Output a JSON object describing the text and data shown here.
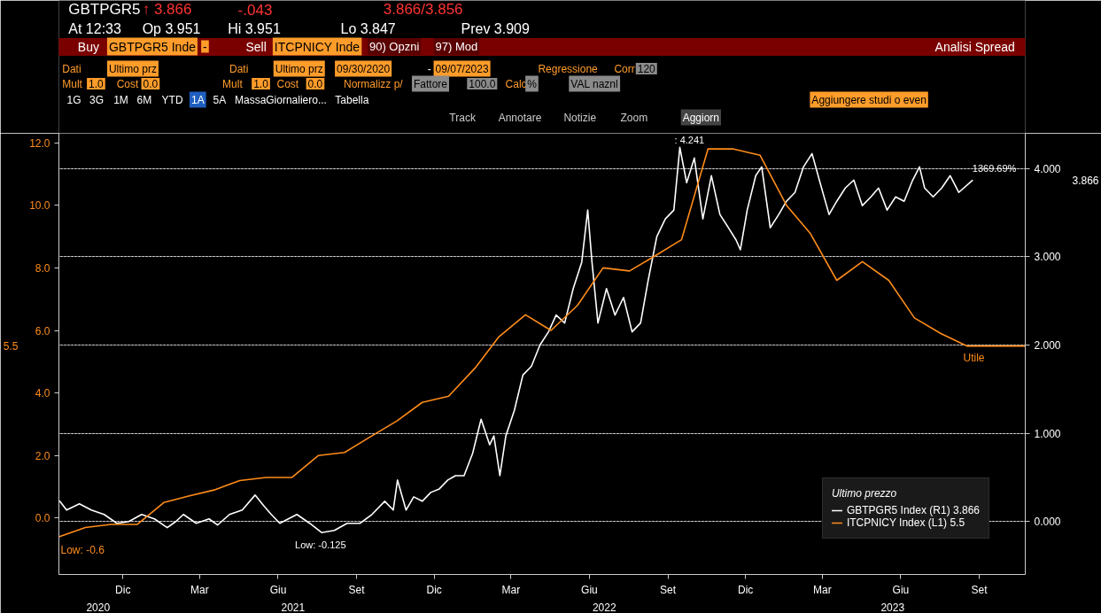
{
  "chart_data": {
    "type": "line",
    "legend_title": "Ultimo prezzo",
    "legend": "bottom right",
    "grid": "y",
    "xlim": [
      "2020-10-01",
      "2023-11-08"
    ],
    "xticks": [
      {
        "value": "2020-12-15",
        "label": "Dic"
      },
      {
        "value": "2021-03-15",
        "label": "Mar"
      },
      {
        "value": "2021-06-15",
        "label": "Giu"
      },
      {
        "value": "2021-09-15",
        "label": "Set"
      },
      {
        "value": "2021-12-15",
        "label": "Dic"
      },
      {
        "value": "2022-03-15",
        "label": "Mar"
      },
      {
        "value": "2022-06-15",
        "label": "Giu"
      },
      {
        "value": "2022-09-15",
        "label": "Set"
      },
      {
        "value": "2022-12-15",
        "label": "Dic"
      },
      {
        "value": "2023-03-15",
        "label": "Mar"
      },
      {
        "value": "2023-06-15",
        "label": "Giu"
      },
      {
        "value": "2023-09-15",
        "label": "Set"
      }
    ],
    "ylim": [
      -0.6,
      4.4
    ],
    "yticks": [
      {
        "value": 0,
        "label": "0.000"
      },
      {
        "value": 1,
        "label": "1.000"
      },
      {
        "value": 2,
        "label": "2.000"
      },
      {
        "value": 3,
        "label": "3.000"
      },
      {
        "value": 4,
        "label": "4.000"
      }
    ],
    "y2lim": [
      -1.8,
      12.3
    ],
    "y2ticks": [
      {
        "value": 0,
        "label": "0.0"
      },
      {
        "value": 2,
        "label": "2.0"
      },
      {
        "value": 4,
        "label": "4.0"
      },
      {
        "value": 6,
        "label": "6.0"
      },
      {
        "value": 8,
        "label": "8.0"
      },
      {
        "value": 10,
        "label": "10.0"
      },
      {
        "value": 12,
        "label": "12.0"
      }
    ],
    "series": [
      {
        "name": "GBTPGR5 Index (R1) 3.866",
        "color": "#ffffff",
        "x": [
          "2020-10-02",
          "2020-10-10",
          "2020-10-25",
          "2020-11-08",
          "2020-11-23",
          "2020-12-08",
          "2020-12-22",
          "2021-01-06",
          "2021-01-21",
          "2021-02-05",
          "2021-02-15",
          "2021-02-24",
          "2021-03-11",
          "2021-03-26",
          "2021-04-05",
          "2021-04-19",
          "2021-05-04",
          "2021-05-19",
          "2021-05-29",
          "2021-06-07",
          "2021-06-17",
          "2021-06-27",
          "2021-07-07",
          "2021-07-22",
          "2021-08-05",
          "2021-08-20",
          "2021-09-04",
          "2021-09-19",
          "2021-10-03",
          "2021-10-18",
          "2021-10-28",
          "2021-11-02",
          "2021-11-12",
          "2021-11-21",
          "2021-12-01",
          "2021-12-11",
          "2021-12-21",
          "2021-12-31",
          "2022-01-09",
          "2022-01-19",
          "2022-01-29",
          "2022-02-08",
          "2022-02-18",
          "2022-02-23",
          "2022-03-02",
          "2022-03-09",
          "2022-03-19",
          "2022-03-29",
          "2022-04-08",
          "2022-04-18",
          "2022-04-28",
          "2022-05-07",
          "2022-05-17",
          "2022-05-27",
          "2022-06-06",
          "2022-06-13",
          "2022-06-18",
          "2022-06-25",
          "2022-07-05",
          "2022-07-15",
          "2022-07-25",
          "2022-08-04",
          "2022-08-14",
          "2022-08-23",
          "2022-09-02",
          "2022-09-12",
          "2022-09-22",
          "2022-09-29",
          "2022-10-07",
          "2022-10-16",
          "2022-10-26",
          "2022-11-05",
          "2022-11-15",
          "2022-11-25",
          "2022-12-04",
          "2022-12-09",
          "2022-12-17",
          "2022-12-27",
          "2023-01-03",
          "2023-01-13",
          "2023-01-23",
          "2023-02-01",
          "2023-02-11",
          "2023-02-21",
          "2023-03-03",
          "2023-03-13",
          "2023-03-23",
          "2023-04-01",
          "2023-04-11",
          "2023-04-21",
          "2023-05-01",
          "2023-05-11",
          "2023-05-20",
          "2023-05-30",
          "2023-06-09",
          "2023-06-19",
          "2023-06-29",
          "2023-07-07",
          "2023-07-13",
          "2023-07-23",
          "2023-08-02",
          "2023-08-12",
          "2023-08-22",
          "2023-09-07"
        ],
        "values": [
          0.23,
          0.13,
          0.2,
          0.13,
          0.08,
          -0.02,
          0.0,
          0.08,
          0.03,
          -0.07,
          0.0,
          0.08,
          -0.02,
          0.03,
          -0.04,
          0.08,
          0.13,
          0.3,
          0.18,
          0.08,
          -0.02,
          0.03,
          0.08,
          -0.02,
          -0.125,
          -0.1,
          -0.02,
          -0.02,
          0.08,
          0.23,
          0.13,
          0.47,
          0.13,
          0.28,
          0.23,
          0.33,
          0.37,
          0.47,
          0.52,
          0.52,
          0.77,
          1.16,
          0.87,
          0.97,
          0.52,
          0.97,
          1.26,
          1.66,
          1.76,
          2.0,
          2.15,
          2.34,
          2.25,
          2.64,
          2.94,
          3.53,
          2.94,
          2.25,
          2.64,
          2.34,
          2.54,
          2.15,
          2.25,
          2.74,
          3.23,
          3.43,
          3.53,
          4.241,
          3.84,
          4.12,
          3.43,
          3.92,
          3.48,
          3.33,
          3.19,
          3.08,
          3.53,
          3.92,
          4.02,
          3.33,
          3.48,
          3.63,
          3.73,
          4.02,
          4.17,
          3.82,
          3.48,
          3.63,
          3.78,
          3.87,
          3.58,
          3.68,
          3.78,
          3.53,
          3.68,
          3.63,
          3.87,
          4.02,
          3.78,
          3.68,
          3.78,
          3.92,
          3.73,
          3.866
        ]
      },
      {
        "name": "ITCPNICY Index (L1) 5.5",
        "color": "#ff8c1a",
        "axis": "y2",
        "x": [
          "2020-10-01",
          "2020-11-01",
          "2020-12-01",
          "2021-01-01",
          "2021-02-01",
          "2021-03-01",
          "2021-04-01",
          "2021-05-01",
          "2021-06-01",
          "2021-07-01",
          "2021-08-01",
          "2021-09-01",
          "2021-10-01",
          "2021-11-01",
          "2021-12-01",
          "2022-01-01",
          "2022-02-01",
          "2022-03-01",
          "2022-04-01",
          "2022-05-01",
          "2022-06-01",
          "2022-07-01",
          "2022-08-01",
          "2022-09-01",
          "2022-10-01",
          "2022-11-01",
          "2022-12-01",
          "2023-01-01",
          "2023-02-01",
          "2023-03-01",
          "2023-04-01",
          "2023-05-01",
          "2023-06-01",
          "2023-07-01",
          "2023-08-01",
          "2023-09-01",
          "2023-11-08"
        ],
        "values": [
          -0.6,
          -0.3,
          -0.2,
          -0.2,
          0.5,
          0.7,
          0.9,
          1.2,
          1.3,
          1.3,
          2.0,
          2.1,
          2.6,
          3.1,
          3.7,
          3.9,
          4.8,
          5.8,
          6.5,
          6.0,
          6.8,
          8.0,
          7.9,
          8.4,
          8.9,
          11.8,
          11.8,
          11.6,
          10.0,
          9.1,
          7.6,
          8.2,
          7.6,
          6.4,
          5.9,
          5.5,
          5.5
        ]
      }
    ],
    "annotations": [
      "GBTPGR5",
      "↑ 3.866",
      "-.043",
      "3.866/3.856",
      "At 12:33",
      "Op 3.951",
      "Hi 3.951",
      "Lo 3.847",
      "Prev 3.909",
      "Buy",
      "GBTPGR5 Inde",
      "-",
      "Sell",
      "ITCPNICY Inde",
      "90) Opzni",
      "97) Mod",
      "Analisi Spread",
      "Dati",
      "Ultimo prz",
      "Dati",
      "Ultimo prz",
      "09/30/2020",
      "-",
      "09/07/2023",
      "Regressione",
      "Corr",
      "120",
      "Mult",
      "1.0",
      "Cost",
      "0.0",
      "Mult",
      "1.0",
      "Cost",
      "0.0",
      "Normalizz p/",
      "Fattore",
      "100.0",
      "Calc",
      "%",
      "VAL naznl",
      "1G",
      "3G",
      "1M",
      "6M",
      "YTD",
      "1A",
      "5A",
      "Massa",
      "Giornaliero...",
      "Tabella",
      "Aggiungere studi o even",
      "Track",
      "Annotare",
      "Notizie",
      "Zoom",
      "Aggiorn",
      "2020",
      "2021",
      "2022",
      "2023",
      "Low: -0.6",
      "5.5",
      "Utile",
      "3.866",
      {
        "text": ": 4.241",
        "x": "2022-09-29",
        "y": 4.241
      },
      {
        "text": "Low: -0.125",
        "x": "2021-08-05",
        "y": -0.125
      },
      {
        "text": "1369.69%",
        "x": "2023-09-07",
        "y": 3.866
      }
    ]
  }
}
